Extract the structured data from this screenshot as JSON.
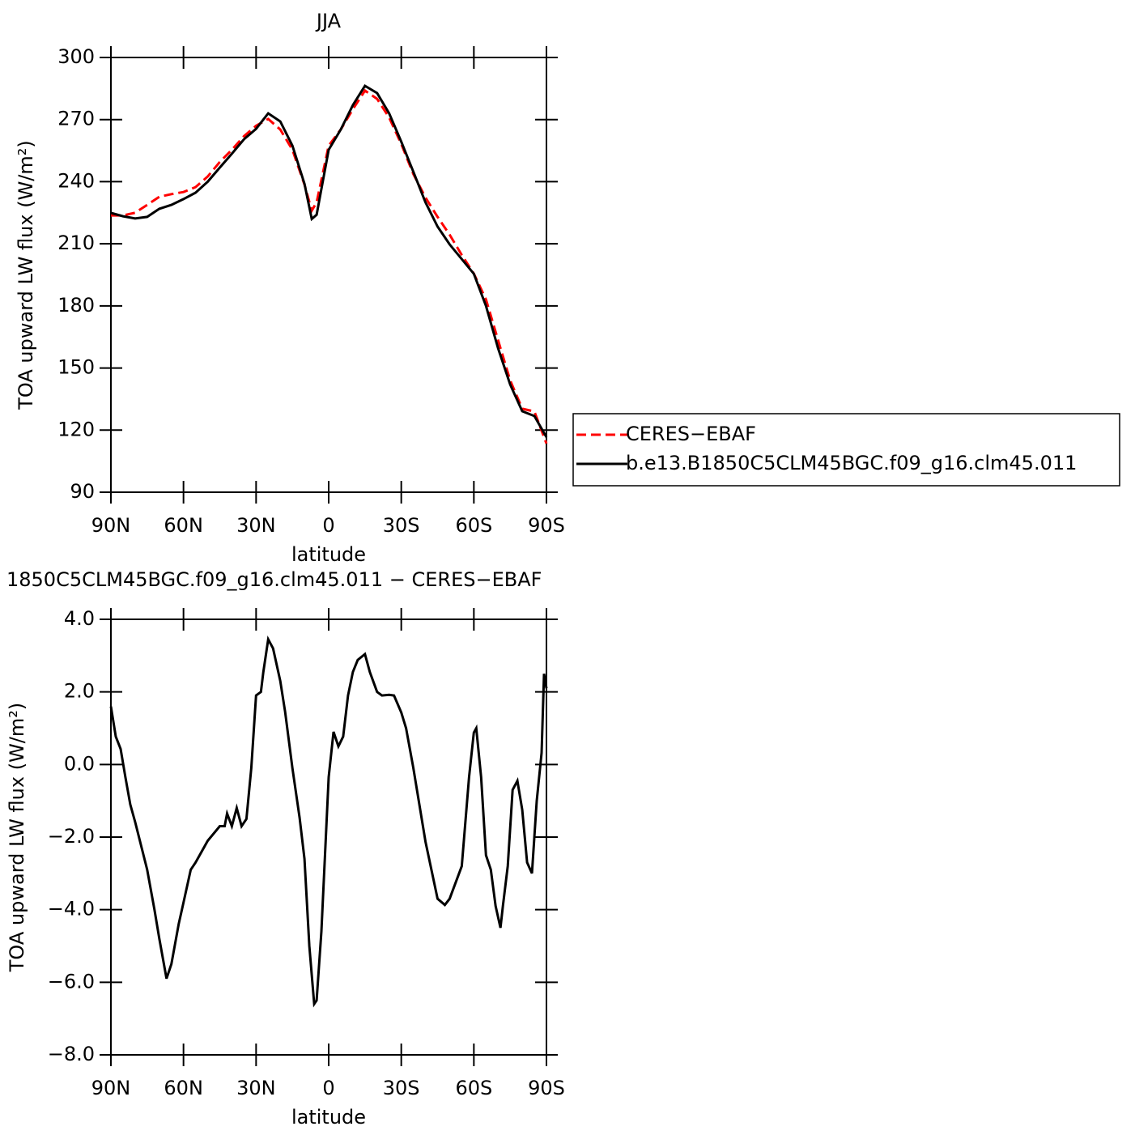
{
  "chart_data": [
    {
      "type": "line",
      "title": "JJA",
      "xlabel": "latitude",
      "ylabel": "TOA upward LW flux (W/m²)",
      "x": [
        90,
        85,
        80,
        75,
        70,
        65,
        60,
        55,
        50,
        45,
        40,
        35,
        30,
        25,
        20,
        15,
        10,
        7,
        5,
        0,
        -5,
        -10,
        -15,
        -20,
        -25,
        -30,
        -35,
        -40,
        -45,
        -50,
        -55,
        -60,
        -65,
        -70,
        -75,
        -80,
        -85,
        -90
      ],
      "series": [
        {
          "name": "CERES−EBAF",
          "color": "#ff0000",
          "linestyle": "dashed",
          "values": [
            223.7,
            223.7,
            225,
            228.8,
            232.7,
            234,
            235,
            237.4,
            242.5,
            249.5,
            255.4,
            262,
            267,
            270.3,
            265.2,
            255.4,
            238.6,
            226,
            230,
            257.4,
            265.2,
            275,
            284,
            280,
            271,
            258.2,
            243.7,
            232.3,
            223,
            214.4,
            204.6,
            195.6,
            183.1,
            163.5,
            144,
            130.3,
            129,
            113.5
          ]
        },
        {
          "name": "b.e13.B1850C5CLM45BGC.f09_g16.clm45.011",
          "color": "#000000",
          "linestyle": "solid",
          "values": [
            224.9,
            223.3,
            222.2,
            223,
            226.9,
            228.8,
            231.6,
            234.7,
            240,
            246.8,
            253.5,
            260.5,
            265.5,
            273,
            269.1,
            257.4,
            239,
            222,
            224,
            255.4,
            265.2,
            277,
            286.3,
            282.8,
            273,
            259.3,
            244.8,
            230,
            218.3,
            209.7,
            202.6,
            195.5,
            180,
            159.6,
            142,
            129.1,
            126.8,
            116.6
          ]
        }
      ],
      "xlim": [
        90,
        -90
      ],
      "xticks": [
        {
          "value": 90,
          "label": "90N"
        },
        {
          "value": 60,
          "label": "60N"
        },
        {
          "value": 30,
          "label": "30N"
        },
        0,
        {
          "value": -30,
          "label": "30S"
        },
        {
          "value": -60,
          "label": "60S"
        },
        {
          "value": -90,
          "label": "90S"
        }
      ],
      "ylim": [
        90,
        300
      ],
      "yticks": [
        90,
        120,
        150,
        180,
        210,
        240,
        270,
        300
      ],
      "legend": "right"
    },
    {
      "type": "line",
      "title": "1850C5CLM45BGC.f09_g16.clm45.011 − CERES−EBAF",
      "xlabel": "latitude",
      "ylabel": "TOA upward LW flux (W/m²)",
      "x": [
        90,
        88,
        86,
        84,
        82,
        80,
        75,
        72,
        70,
        67,
        65,
        62,
        60,
        57,
        55,
        50,
        45,
        43,
        42,
        40,
        38,
        36,
        34,
        32,
        30,
        28,
        27,
        25,
        23,
        20,
        18,
        15,
        12,
        10,
        8,
        6,
        5,
        3,
        0,
        -2,
        -4,
        -6,
        -8,
        -10,
        -12,
        -15,
        -17,
        -20,
        -22,
        -25,
        -27,
        -30,
        -32,
        -35,
        -40,
        -45,
        -48,
        -50,
        -55,
        -58,
        -60,
        -61,
        -63,
        -65,
        -67,
        -69,
        -71,
        -72,
        -74,
        -76,
        -78,
        -80,
        -82,
        -84,
        -86,
        -88,
        -89,
        -90
      ],
      "series": [
        {
          "name": "b.e13.B1850C5CLM45BGC.f09_g16.clm45.011",
          "color": "#000000",
          "linestyle": "solid",
          "values": [
            1.6,
            0.77,
            0.43,
            -0.35,
            -1.1,
            -1.58,
            -2.9,
            -4.0,
            -4.8,
            -5.9,
            -5.5,
            -4.4,
            -3.8,
            -2.9,
            -2.7,
            -2.1,
            -1.7,
            -1.7,
            -1.35,
            -1.7,
            -1.2,
            -1.7,
            -1.5,
            -0.1,
            1.9,
            2.0,
            2.55,
            3.45,
            3.2,
            2.3,
            1.45,
            -0.1,
            -1.47,
            -2.6,
            -5.0,
            -6.6,
            -6.5,
            -4.6,
            -0.35,
            0.9,
            0.5,
            0.77,
            1.9,
            2.55,
            2.88,
            3.04,
            2.55,
            2.0,
            1.9,
            1.92,
            1.9,
            1.43,
            1.0,
            -0.1,
            -2.13,
            -3.7,
            -3.87,
            -3.7,
            -2.8,
            -0.35,
            0.88,
            1.0,
            -0.35,
            -2.5,
            -2.9,
            -3.9,
            -4.5,
            -3.9,
            -2.8,
            -0.7,
            -0.45,
            -1.25,
            -2.7,
            -3.0,
            -1.0,
            0.32,
            2.5,
            2.1
          ]
        }
      ],
      "xlim": [
        90,
        -90
      ],
      "xticks": [
        {
          "value": 90,
          "label": "90N"
        },
        {
          "value": 60,
          "label": "60N"
        },
        {
          "value": 30,
          "label": "30N"
        },
        0,
        {
          "value": -30,
          "label": "30S"
        },
        {
          "value": -60,
          "label": "60S"
        },
        {
          "value": -90,
          "label": "90S"
        }
      ],
      "ylim": [
        -8,
        4
      ],
      "yticks": [
        {
          "value": -8,
          "label": "−8.0"
        },
        {
          "value": -6,
          "label": "−6.0"
        },
        {
          "value": -4,
          "label": "−4.0"
        },
        {
          "value": -2,
          "label": "−2.0"
        },
        {
          "value": 0,
          "label": "0.0"
        },
        {
          "value": 2,
          "label": "2.0"
        },
        {
          "value": 4,
          "label": "4.0"
        }
      ]
    }
  ]
}
